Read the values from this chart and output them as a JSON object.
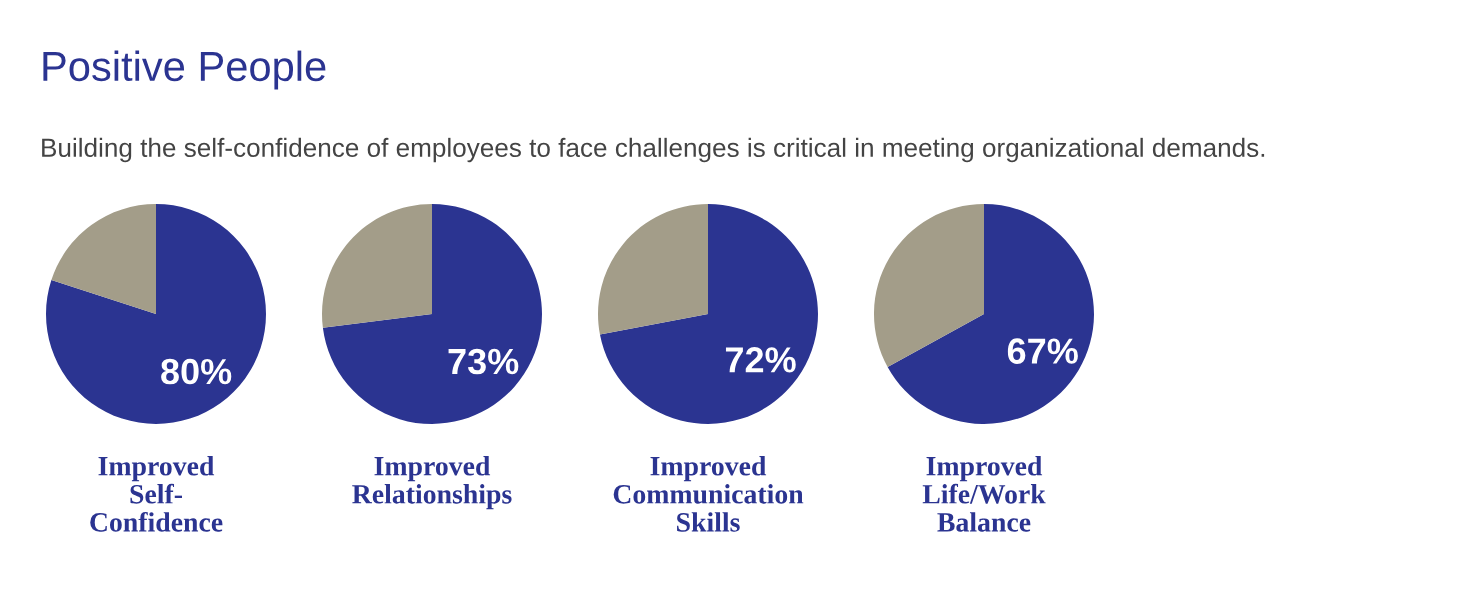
{
  "chart_data": [
    {
      "type": "pie",
      "title": "Positive People",
      "subtitle": "Building the self-confidence of employees to face challenges is critical in meeting organizational demands.",
      "xlabel": "Improved\nSelf-\nConfidence",
      "categories": [
        null,
        null
      ],
      "values": [
        80,
        20
      ],
      "colors": [
        "#2b3491",
        "#a39d89"
      ],
      "value_labels": [
        "80%",
        null
      ]
    },
    {
      "type": "pie",
      "xlabel": "Improved\nRelationships",
      "categories": [
        null,
        null
      ],
      "values": [
        73,
        27
      ],
      "colors": [
        "#2b3491",
        "#a39d89"
      ],
      "value_labels": [
        "73%",
        null
      ]
    },
    {
      "type": "pie",
      "xlabel": "Improved\nCommunication\nSkills",
      "categories": [
        null,
        null
      ],
      "values": [
        72,
        28
      ],
      "colors": [
        "#2b3491",
        "#a39d89"
      ],
      "value_labels": [
        "72%",
        null
      ]
    },
    {
      "type": "pie",
      "xlabel": "Improved\nLife/Work\nBalance",
      "categories": [
        null,
        null
      ],
      "values": [
        67,
        33
      ],
      "colors": [
        "#2b3491",
        "#a39d89"
      ],
      "value_labels": [
        "67%",
        null
      ]
    }
  ]
}
